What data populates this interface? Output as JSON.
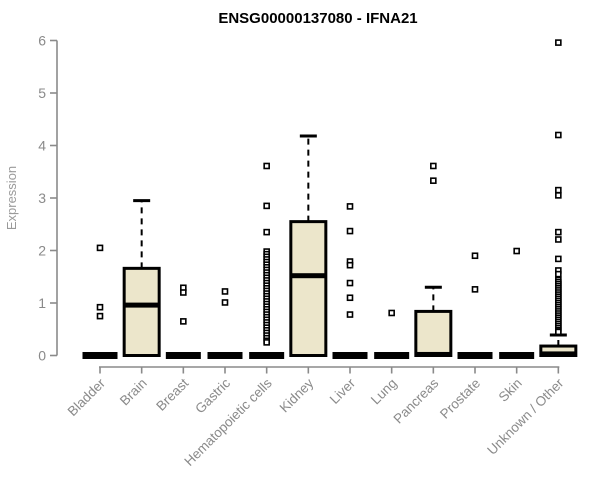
{
  "chart_data": {
    "type": "boxplot",
    "title": "ENSG00000137080 - IFNA21",
    "ylabel": "Expression",
    "xlabel": "",
    "ylim": [
      0,
      6
    ],
    "yticks": [
      0,
      1,
      2,
      3,
      4,
      5,
      6
    ],
    "grid": false,
    "legend": "none",
    "colors": {
      "box_fill": "#ECE6CB",
      "box_line": "#000000",
      "axis": "#8a8a8a",
      "tick_label": "#8a8a8a",
      "title": "#000000",
      "outlier_fill": "#ffffff"
    },
    "categories": [
      "Bladder",
      "Brain",
      "Breast",
      "Gastric",
      "Hematopoietic cells",
      "Kidney",
      "Liver",
      "Lung",
      "Pancreas",
      "Prostate",
      "Skin",
      "Unknown / Other"
    ],
    "boxes": [
      {
        "category": "Bladder",
        "q1": 0,
        "median": 0,
        "q3": 0,
        "whisker_low": 0,
        "whisker_high": 0,
        "outliers": [
          2.05,
          0.92,
          0.75
        ]
      },
      {
        "category": "Brain",
        "q1": 0,
        "median": 0.96,
        "q3": 1.66,
        "whisker_low": 0,
        "whisker_high": 2.95,
        "outliers": []
      },
      {
        "category": "Breast",
        "q1": 0,
        "median": 0,
        "q3": 0,
        "whisker_low": 0,
        "whisker_high": 0,
        "outliers": [
          1.29,
          1.2,
          0.65
        ]
      },
      {
        "category": "Gastric",
        "q1": 0,
        "median": 0,
        "q3": 0,
        "whisker_low": 0,
        "whisker_high": 0,
        "outliers": [
          1.22,
          1.01
        ]
      },
      {
        "category": "Hematopoietic cells",
        "q1": 0,
        "median": 0,
        "q3": 0,
        "whisker_low": 0,
        "whisker_high": 0,
        "outliers": [
          3.61,
          2.85,
          2.35,
          1.98,
          1.93,
          1.88,
          1.83,
          1.78,
          1.73,
          1.68,
          1.63,
          1.58,
          1.53,
          1.48,
          1.43,
          1.38,
          1.33,
          1.28,
          1.23,
          1.18,
          1.13,
          1.08,
          1.03,
          0.98,
          0.93,
          0.88,
          0.83,
          0.78,
          0.73,
          0.68,
          0.63,
          0.58,
          0.53,
          0.48,
          0.43,
          0.38,
          0.33,
          0.28,
          0.25
        ]
      },
      {
        "category": "Kidney",
        "q1": 0,
        "median": 1.52,
        "q3": 2.55,
        "whisker_low": 0,
        "whisker_high": 4.18,
        "outliers": []
      },
      {
        "category": "Liver",
        "q1": 0,
        "median": 0,
        "q3": 0,
        "whisker_low": 0,
        "whisker_high": 0,
        "outliers": [
          2.84,
          2.37,
          1.79,
          1.72,
          1.38,
          1.1,
          0.78
        ]
      },
      {
        "category": "Lung",
        "q1": 0,
        "median": 0,
        "q3": 0,
        "whisker_low": 0,
        "whisker_high": 0,
        "outliers": [
          0.81
        ]
      },
      {
        "category": "Pancreas",
        "q1": 0,
        "median": 0.02,
        "q3": 0.84,
        "whisker_low": 0,
        "whisker_high": 1.3,
        "outliers": [
          3.61,
          3.33
        ]
      },
      {
        "category": "Prostate",
        "q1": 0,
        "median": 0,
        "q3": 0,
        "whisker_low": 0,
        "whisker_high": 0,
        "outliers": [
          1.9,
          1.26
        ]
      },
      {
        "category": "Skin",
        "q1": 0,
        "median": 0,
        "q3": 0,
        "whisker_low": 0,
        "whisker_high": 0,
        "outliers": [
          1.99
        ]
      },
      {
        "category": "Unknown / Other",
        "q1": 0,
        "median": 0.03,
        "q3": 0.18,
        "whisker_low": 0,
        "whisker_high": 0.39,
        "outliers": [
          5.96,
          4.2,
          3.15,
          3.05,
          2.35,
          2.21,
          1.84,
          1.62,
          1.55,
          1.44,
          1.4,
          1.36,
          1.32,
          1.28,
          1.24,
          1.2,
          1.16,
          1.12,
          1.08,
          1.04,
          1.0,
          0.96,
          0.92,
          0.88,
          0.84,
          0.8,
          0.76,
          0.72,
          0.68,
          0.64,
          0.6,
          0.56,
          0.52,
          0.48,
          0.45
        ]
      }
    ]
  }
}
